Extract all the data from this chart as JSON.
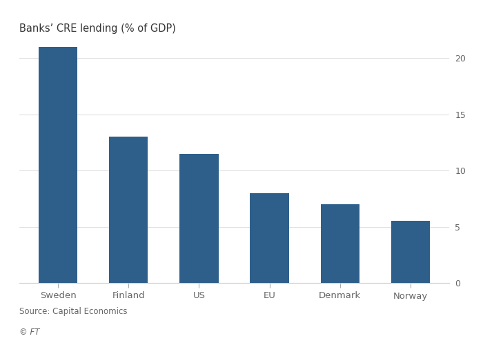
{
  "categories": [
    "Sweden",
    "Finland",
    "US",
    "EU",
    "Denmark",
    "Norway"
  ],
  "values": [
    21.0,
    13.0,
    11.5,
    8.0,
    7.0,
    5.5
  ],
  "bar_color": "#2e5f8a",
  "title": "Banks’ CRE lending (% of GDP)",
  "title_fontsize": 10.5,
  "ylim": [
    0,
    21.5
  ],
  "yticks": [
    0,
    5,
    10,
    15,
    20
  ],
  "source_text": "Source: Capital Economics",
  "ft_text": "© FT",
  "background_color": "#ffffff",
  "grid_color": "#e0e0e0",
  "axes_bg_color": "#ffffff",
  "tick_label_color": "#666666",
  "title_color": "#333333"
}
